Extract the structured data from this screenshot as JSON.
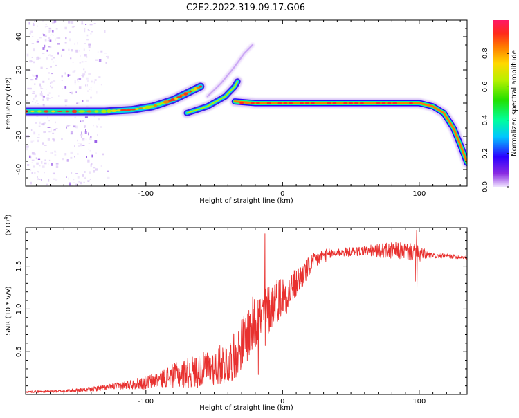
{
  "title": "C2E2.2022.319.09.17.G06",
  "colors": {
    "snr_line": "#e8312f",
    "frame": "#000000",
    "background": "#ffffff"
  },
  "chart_data": [
    {
      "type": "heatmap",
      "name": "spectrogram",
      "xlabel": "Height of straight line (km)",
      "ylabel": "Frequency (Hz)",
      "xlim": [
        -188,
        135
      ],
      "ylim": [
        -50,
        50
      ],
      "xticks": [
        {
          "v": -100,
          "label": "-100"
        },
        {
          "v": 0,
          "label": "0"
        },
        {
          "v": 100,
          "label": "100"
        }
      ],
      "yticks": [
        {
          "v": 40,
          "label": "40"
        },
        {
          "v": 20,
          "label": "20"
        },
        {
          "v": 0,
          "label": "0"
        },
        {
          "v": -20,
          "label": "-20"
        },
        {
          "v": -40,
          "label": "-40"
        }
      ],
      "colorbar": {
        "label": "Normalized spectral amplitude",
        "range": [
          0,
          1
        ],
        "ticks": [
          {
            "v": 0.0,
            "label": "0.0"
          },
          {
            "v": 0.2,
            "label": "0.2"
          },
          {
            "v": 0.4,
            "label": "0.4"
          },
          {
            "v": 0.6,
            "label": "0.6"
          },
          {
            "v": 0.8,
            "label": "0.8"
          }
        ]
      },
      "main_trace": [
        {
          "x": -188,
          "y": -5
        },
        {
          "x": -160,
          "y": -5
        },
        {
          "x": -130,
          "y": -5
        },
        {
          "x": -110,
          "y": -4
        },
        {
          "x": -95,
          "y": -2
        },
        {
          "x": -80,
          "y": 2
        },
        {
          "x": -70,
          "y": 6
        },
        {
          "x": -60,
          "y": 10
        }
      ],
      "secondary_trace": [
        {
          "x": -70,
          "y": -6
        },
        {
          "x": -55,
          "y": -2
        },
        {
          "x": -42,
          "y": 4
        },
        {
          "x": -35,
          "y": 10
        },
        {
          "x": -33,
          "y": 13
        }
      ],
      "faint_trace": [
        {
          "x": -55,
          "y": 4
        },
        {
          "x": -45,
          "y": 12
        },
        {
          "x": -35,
          "y": 22
        },
        {
          "x": -28,
          "y": 30
        },
        {
          "x": -22,
          "y": 35
        }
      ],
      "flat_trace": [
        {
          "x": -35,
          "y": 1
        },
        {
          "x": -20,
          "y": 0
        },
        {
          "x": 0,
          "y": 0
        },
        {
          "x": 50,
          "y": 0
        },
        {
          "x": 100,
          "y": 0
        },
        {
          "x": 110,
          "y": -2
        },
        {
          "x": 118,
          "y": -6
        },
        {
          "x": 125,
          "y": -15
        },
        {
          "x": 130,
          "y": -25
        },
        {
          "x": 135,
          "y": -36
        }
      ]
    },
    {
      "type": "line",
      "name": "snr",
      "xlabel": "Height of straight line (km)",
      "ylabel": "SNR (10 * v/v)",
      "multiplier": "(x10",
      "multiplier_exp": "4",
      "multiplier_close": ")",
      "xlim": [
        -188,
        135
      ],
      "ylim": [
        0,
        1.95
      ],
      "xticks": [
        {
          "v": -100,
          "label": "-100"
        },
        {
          "v": 0,
          "label": "0"
        },
        {
          "v": 100,
          "label": "100"
        }
      ],
      "yticks": [
        {
          "v": 0.5,
          "label": "0.5"
        },
        {
          "v": 1.0,
          "label": "1.0"
        },
        {
          "v": 1.5,
          "label": "1.5"
        }
      ],
      "envelope": {
        "x": [
          -188,
          -160,
          -140,
          -130,
          -120,
          -110,
          -100,
          -90,
          -80,
          -70,
          -60,
          -50,
          -40,
          -35,
          -30,
          -25,
          -20,
          -15,
          -10,
          -5,
          0,
          5,
          10,
          15,
          20,
          25,
          30,
          40,
          50,
          60,
          70,
          80,
          90,
          95,
          100,
          110,
          120,
          135
        ],
        "y": [
          0.03,
          0.04,
          0.06,
          0.08,
          0.1,
          0.12,
          0.14,
          0.18,
          0.22,
          0.25,
          0.28,
          0.32,
          0.38,
          0.45,
          0.6,
          0.72,
          0.85,
          0.9,
          1.0,
          1.1,
          1.15,
          1.2,
          1.3,
          1.4,
          1.5,
          1.58,
          1.62,
          1.66,
          1.67,
          1.68,
          1.68,
          1.68,
          1.68,
          1.66,
          1.64,
          1.62,
          1.62,
          1.6
        ]
      },
      "noise": {
        "x": [
          -188,
          -150,
          -120,
          -90,
          -70,
          -50,
          -40,
          -30,
          -20,
          -10,
          0,
          10,
          20,
          30,
          40,
          60,
          80,
          100,
          110,
          135
        ],
        "amp": [
          0.01,
          0.02,
          0.04,
          0.1,
          0.18,
          0.22,
          0.26,
          0.3,
          0.35,
          0.3,
          0.25,
          0.18,
          0.12,
          0.08,
          0.05,
          0.06,
          0.1,
          0.1,
          0.03,
          0.02
        ]
      },
      "spikes": [
        {
          "x": -13,
          "y": 1.88
        },
        {
          "x": -18,
          "y": 1.1
        },
        {
          "x": 98,
          "y": 1.92
        },
        {
          "x": 97,
          "y": 1.32
        }
      ]
    }
  ]
}
